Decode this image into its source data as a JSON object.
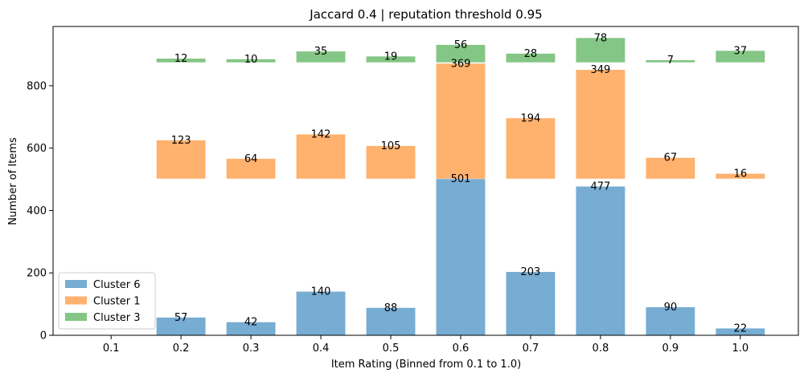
{
  "chart_data": {
    "type": "bar",
    "title": "Jaccard 0.4 | reputation threshold 0.95",
    "xlabel": "Item Rating (Binned from 0.1 to 1.0)",
    "ylabel": "Number of Items",
    "categories": [
      "0.1",
      "0.2",
      "0.3",
      "0.4",
      "0.5",
      "0.6",
      "0.7",
      "0.8",
      "0.9",
      "1.0"
    ],
    "ylim": [
      0,
      990
    ],
    "yticks": [
      "0",
      "200",
      "400",
      "600",
      "800"
    ],
    "legend_position": "lower-left",
    "grid": false,
    "series": [
      {
        "name": "Cluster 6",
        "color": "#77acd3",
        "base": 0,
        "values": [
          null,
          57,
          42,
          140,
          88,
          501,
          203,
          477,
          90,
          22
        ],
        "labels": [
          "",
          "57",
          "42",
          "140",
          "88",
          "501",
          "203",
          "477",
          "90",
          "22"
        ]
      },
      {
        "name": "Cluster 1",
        "color": "#ffb16e",
        "base": 502,
        "values": [
          null,
          123,
          64,
          142,
          105,
          369,
          194,
          349,
          67,
          16
        ],
        "labels": [
          "",
          "123",
          "64",
          "142",
          "105",
          "369",
          "194",
          "349",
          "67",
          "16"
        ]
      },
      {
        "name": "Cluster 3",
        "color": "#84c685",
        "base": 875,
        "values": [
          null,
          12,
          10,
          35,
          19,
          56,
          28,
          78,
          7,
          37
        ],
        "labels": [
          "",
          "12",
          "10",
          "35",
          "19",
          "56",
          "28",
          "78",
          "7",
          "37"
        ]
      }
    ]
  }
}
